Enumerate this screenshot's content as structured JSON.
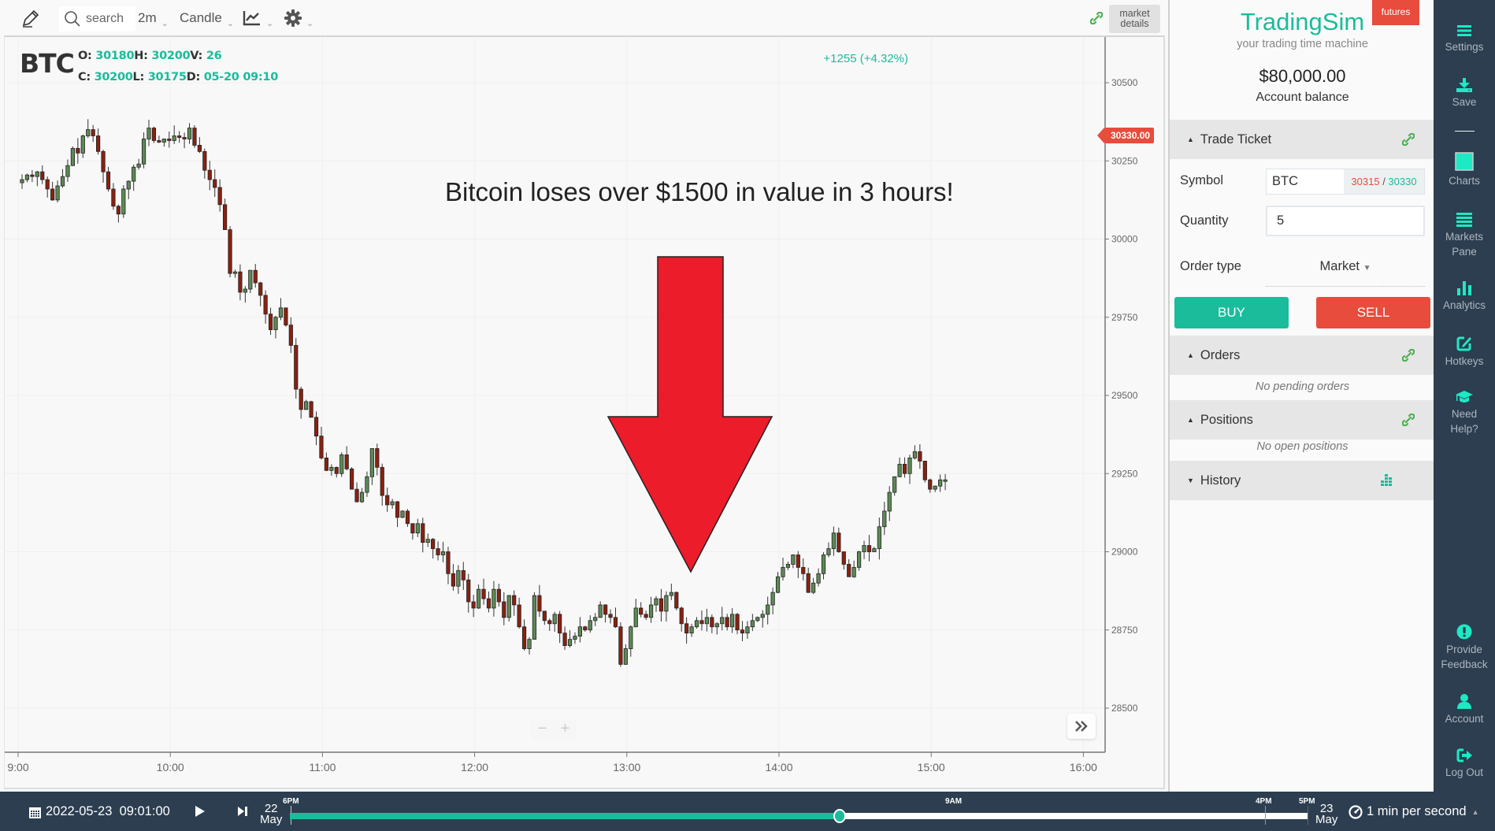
{
  "toolbar": {
    "search_placeholder": "search",
    "interval": "2m",
    "chart_type": "Candle",
    "market_details": [
      "market",
      "details"
    ]
  },
  "chart": {
    "symbol": "BTC",
    "ohlc": {
      "o_label": "O:",
      "o": "30180",
      "h_label": "H:",
      "h": "30200",
      "v_label": "V:",
      "v": "26",
      "c_label": "C:",
      "c": "30200",
      "l_label": "L:",
      "l": "30175",
      "d_label": "D:",
      "d": "05-20 09:10"
    },
    "change": "+1255 (+4.32%)",
    "annotation": "Bitcoin loses over $1500 in value in 3 hours!",
    "last_price_tag": "30330.00",
    "zoom_out": "−",
    "zoom_in": "+"
  },
  "chart_data": {
    "type": "candlestick",
    "title": "BTC 2m",
    "xlabel": "",
    "ylabel": "",
    "y_ticks": [
      30500,
      30250,
      30000,
      29750,
      29500,
      29250,
      29000,
      28750,
      28500
    ],
    "x_ticks": [
      "9:00",
      "10:00",
      "11:00",
      "12:00",
      "13:00",
      "14:00",
      "15:00",
      "16:00"
    ],
    "ylim": [
      28370,
      30630
    ],
    "interval_minutes": 2,
    "start_time": "9:00",
    "colors": {
      "up": "#5d8a55",
      "down": "#8b2010",
      "outline": "#222222"
    },
    "closes": [
      30190,
      30205,
      30200,
      30215,
      30190,
      30160,
      30125,
      30170,
      30200,
      30235,
      30290,
      30275,
      30330,
      30350,
      30330,
      30280,
      30215,
      30160,
      30105,
      30080,
      30160,
      30185,
      30230,
      30240,
      30320,
      30355,
      30315,
      30310,
      30320,
      30315,
      30330,
      30325,
      30320,
      30355,
      30300,
      30280,
      30220,
      30190,
      30165,
      30110,
      30030,
      29890,
      29895,
      29830,
      29840,
      29900,
      29860,
      29820,
      29760,
      29710,
      29750,
      29780,
      29725,
      29660,
      29520,
      29455,
      29480,
      29430,
      29370,
      29300,
      29260,
      29270,
      29250,
      29310,
      29265,
      29200,
      29160,
      29190,
      29240,
      29330,
      29270,
      29180,
      29150,
      29160,
      29110,
      29130,
      29090,
      29060,
      29090,
      29030,
      29040,
      29010,
      28990,
      29000,
      28930,
      28890,
      28940,
      28910,
      28840,
      28820,
      28880,
      28850,
      28820,
      28880,
      28840,
      28790,
      28860,
      28830,
      28760,
      28690,
      28720,
      28860,
      28810,
      28780,
      28770,
      28800,
      28740,
      28700,
      28720,
      28730,
      28760,
      28750,
      28780,
      28790,
      28830,
      28800,
      28790,
      28760,
      28640,
      28690,
      28760,
      28820,
      28800,
      28790,
      28830,
      28850,
      28810,
      28860,
      28870,
      28820,
      28770,
      28740,
      28760,
      28780,
      28770,
      28790,
      28760,
      28770,
      28790,
      28760,
      28800,
      28750,
      28740,
      28760,
      28780,
      28790,
      28800,
      28830,
      28870,
      28920,
      28950,
      28960,
      28990,
      28950,
      28930,
      28870,
      28900,
      28930,
      28990,
      29010,
      29060,
      29000,
      28960,
      28920,
      28950,
      29000,
      29020,
      29000,
      29010,
      29080,
      29130,
      29190,
      29240,
      29280,
      29250,
      29300,
      29320,
      29290,
      29230,
      29200,
      29210,
      29230,
      29230
    ],
    "last_price": 30330
  },
  "right_panel": {
    "brand": "TradingSim",
    "tagline": "your trading time machine",
    "badge": "futures",
    "balance": "$80,000.00",
    "balance_label": "Account balance",
    "trade_ticket": {
      "title": "Trade Ticket",
      "symbol_label": "Symbol",
      "symbol_value": "BTC",
      "bid": "30315",
      "sep": " / ",
      "ask": "30330",
      "quantity_label": "Quantity",
      "quantity_value": "5",
      "order_type_label": "Order type",
      "order_type_value": "Market",
      "buy": "BUY",
      "sell": "SELL"
    },
    "orders": {
      "title": "Orders",
      "empty": "No pending orders"
    },
    "positions": {
      "title": "Positions",
      "empty": "No open positions"
    },
    "history": {
      "title": "History"
    }
  },
  "sidebar": {
    "settings": "Settings",
    "save": "Save",
    "charts": "Charts",
    "markets": [
      "Markets",
      "Pane"
    ],
    "analytics": "Analytics",
    "hotkeys": "Hotkeys",
    "help": [
      "Need",
      "Help?"
    ],
    "feedback": [
      "Provide",
      "Feedback"
    ],
    "account": "Account",
    "logout": "Log Out"
  },
  "bottombar": {
    "datetime": "2022-05-23  09:01:00",
    "day_start": {
      "day": "22",
      "month": "May"
    },
    "day_end": {
      "day": "23",
      "month": "May"
    },
    "labels": {
      "start": "6PM",
      "current": "9AM",
      "t4": "4PM",
      "t5": "5PM"
    },
    "progress_pct": 54,
    "speed": "1 min per second"
  },
  "colors": {
    "accent": "#1abc9c",
    "danger": "#e74c3c",
    "sidebar_bg": "#2c3e50",
    "sidebar_icon": "#1de9c4",
    "arrow": "#ec1c2a"
  }
}
